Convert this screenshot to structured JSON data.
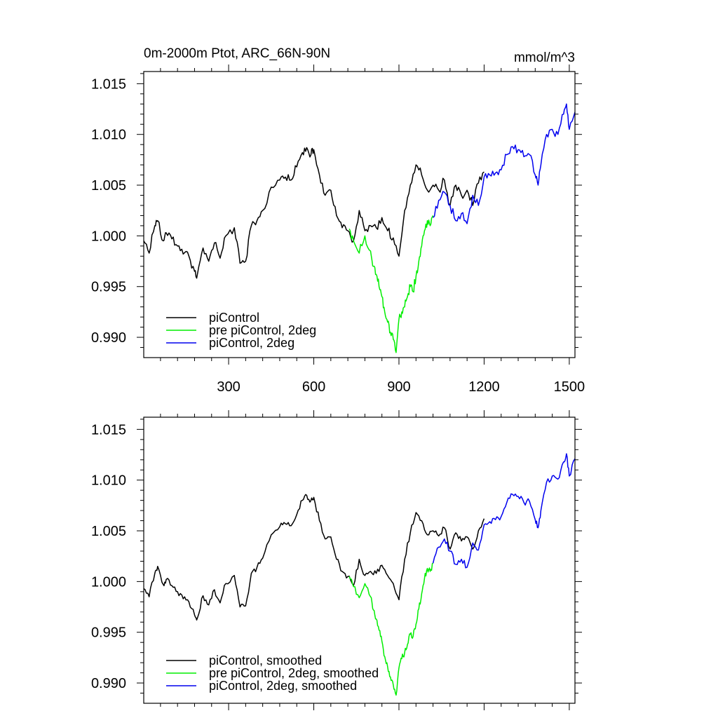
{
  "chart_data": [
    {
      "type": "line",
      "title": "0m-2000m Ptot, ARC_66N-90N",
      "units": "mmol/m^3",
      "xlim": [
        1,
        1520
      ],
      "ylim": [
        0.988,
        1.0162
      ],
      "x_ticks": [
        300,
        600,
        900,
        1200,
        1500
      ],
      "y_ticks": [
        1.015,
        1.01,
        1.005,
        1.0,
        0.995,
        0.99
      ],
      "y_tick_labels": [
        "1.015",
        "1.010",
        "1.005",
        "1.000",
        "0.995",
        "0.990"
      ],
      "legend_position": "bottom-left",
      "series": [
        {
          "name": "piControl",
          "color": "#000000",
          "x": [
            1,
            20,
            40,
            50,
            70,
            80,
            100,
            120,
            140,
            160,
            180,
            190,
            210,
            230,
            250,
            270,
            290,
            320,
            340,
            360,
            380,
            400,
            420,
            450,
            480,
            500,
            520,
            540,
            560,
            575,
            590,
            600,
            620,
            640,
            660,
            680,
            700,
            720,
            740,
            760,
            780,
            800,
            820,
            840,
            860,
            880,
            900,
            920,
            940,
            960,
            980,
            1000,
            1020,
            1040,
            1060,
            1080,
            1100,
            1120,
            1140,
            1160,
            1180,
            1200
          ],
          "y": [
            0.9995,
            0.9983,
            1.001,
            1.0015,
            0.9995,
            1.0003,
            0.9997,
            0.999,
            0.9982,
            0.998,
            0.9965,
            0.9962,
            0.9988,
            0.9975,
            0.9993,
            0.9978,
            1.0,
            1.0008,
            0.9973,
            0.9975,
            1.001,
            1.0015,
            1.0025,
            1.0048,
            1.0055,
            1.0058,
            1.0055,
            1.0068,
            1.0082,
            1.0087,
            1.008,
            1.0085,
            1.006,
            1.004,
            1.0045,
            1.002,
            1.0008,
            1.0005,
            0.9995,
            1.0025,
            1.0005,
            1.001,
            1.0008,
            1.0018,
            1.0005,
            0.9998,
            0.998,
            1.0025,
            1.005,
            1.007,
            1.006,
            1.0045,
            1.005,
            1.0045,
            1.0055,
            1.003,
            1.005,
            1.004,
            1.0045,
            1.003,
            1.0052,
            1.0063
          ]
        },
        {
          "name": "pre piControl, 2deg",
          "color": "#00ee00",
          "x": [
            725,
            740,
            760,
            780,
            800,
            810,
            820,
            830,
            840,
            850,
            860,
            870,
            880,
            890,
            900,
            910,
            920,
            930,
            940,
            950,
            960,
            970,
            980,
            990,
            1000,
            1010,
            1020
          ],
          "y": [
            1.0007,
            0.9995,
            0.9983,
            1.0,
            0.9985,
            0.997,
            0.9962,
            0.995,
            0.994,
            0.9925,
            0.9915,
            0.9905,
            0.9898,
            0.9885,
            0.9918,
            0.9925,
            0.993,
            0.994,
            0.995,
            0.9945,
            0.996,
            0.9975,
            0.999,
            1.0005,
            1.0015,
            1.001,
            1.002
          ]
        },
        {
          "name": "piControl, 2deg",
          "color": "#0000ee",
          "x": [
            1020,
            1040,
            1060,
            1080,
            1100,
            1120,
            1140,
            1160,
            1180,
            1200,
            1220,
            1240,
            1260,
            1280,
            1300,
            1320,
            1340,
            1360,
            1380,
            1390,
            1400,
            1420,
            1440,
            1460,
            1480,
            1490,
            1500,
            1520
          ],
          "y": [
            1.0018,
            1.0035,
            1.0043,
            1.003,
            1.0015,
            1.0022,
            1.0012,
            1.004,
            1.003,
            1.0058,
            1.006,
            1.0062,
            1.0065,
            1.008,
            1.0088,
            1.0085,
            1.0078,
            1.008,
            1.006,
            1.005,
            1.007,
            1.01,
            1.0105,
            1.01,
            1.012,
            1.013,
            1.0105,
            1.0122
          ]
        }
      ]
    },
    {
      "type": "line",
      "xlim": [
        1,
        1520
      ],
      "ylim": [
        0.988,
        1.0162
      ],
      "x_ticks": [
        300,
        600,
        900,
        1200,
        1500
      ],
      "y_ticks": [
        1.015,
        1.01,
        1.005,
        1.0,
        0.995,
        0.99
      ],
      "y_tick_labels": [
        "1.015",
        "1.010",
        "1.005",
        "1.000",
        "0.995",
        "0.990"
      ],
      "legend_position": "bottom-left",
      "series": [
        {
          "name": "piControl, smoothed",
          "color": "#000000",
          "x": [
            1,
            20,
            40,
            50,
            70,
            80,
            100,
            120,
            140,
            160,
            180,
            190,
            210,
            230,
            250,
            270,
            290,
            320,
            340,
            360,
            380,
            400,
            420,
            450,
            480,
            500,
            520,
            540,
            560,
            575,
            590,
            600,
            620,
            640,
            660,
            680,
            700,
            720,
            740,
            760,
            780,
            800,
            820,
            840,
            860,
            880,
            900,
            920,
            940,
            960,
            980,
            1000,
            1020,
            1040,
            1060,
            1080,
            1100,
            1120,
            1140,
            1160,
            1180,
            1200
          ],
          "y": [
            0.9993,
            0.9985,
            1.0008,
            1.0015,
            0.9997,
            1.0002,
            0.9996,
            0.999,
            0.9983,
            0.998,
            0.9967,
            0.9964,
            0.9986,
            0.9977,
            0.9992,
            0.9979,
            0.9998,
            1.0006,
            0.9975,
            0.9976,
            1.0008,
            1.0014,
            1.0023,
            1.0046,
            1.0054,
            1.0057,
            1.0055,
            1.0066,
            1.008,
            1.0085,
            1.008,
            1.0083,
            1.006,
            1.0042,
            1.0044,
            1.0022,
            1.001,
            1.0005,
            0.9996,
            1.0022,
            1.0006,
            1.001,
            1.0008,
            1.0016,
            1.0006,
            0.9998,
            0.9982,
            1.0022,
            1.0048,
            1.0068,
            1.006,
            1.0046,
            1.005,
            1.0045,
            1.0053,
            1.0032,
            1.0048,
            1.004,
            1.0044,
            1.0032,
            1.005,
            1.0062
          ]
        },
        {
          "name": "pre piControl, 2deg, smoothed",
          "color": "#00ee00",
          "x": [
            725,
            740,
            760,
            780,
            800,
            810,
            820,
            830,
            840,
            850,
            860,
            870,
            880,
            890,
            900,
            910,
            920,
            930,
            940,
            950,
            960,
            970,
            980,
            990,
            1000,
            1010,
            1020
          ],
          "y": [
            1.0005,
            0.9995,
            0.9984,
            0.9998,
            0.9985,
            0.9972,
            0.9963,
            0.9952,
            0.9941,
            0.9926,
            0.9916,
            0.9906,
            0.9898,
            0.9888,
            0.9915,
            0.9924,
            0.993,
            0.9938,
            0.9948,
            0.9946,
            0.9958,
            0.9973,
            0.9988,
            1.0003,
            1.0013,
            1.001,
            1.0018
          ]
        },
        {
          "name": "piControl, 2deg, smoothed",
          "color": "#0000ee",
          "x": [
            1020,
            1040,
            1060,
            1080,
            1100,
            1120,
            1140,
            1160,
            1180,
            1200,
            1220,
            1240,
            1260,
            1280,
            1300,
            1320,
            1340,
            1360,
            1380,
            1390,
            1400,
            1420,
            1440,
            1460,
            1480,
            1490,
            1500,
            1520
          ],
          "y": [
            1.0018,
            1.0034,
            1.0042,
            1.003,
            1.0017,
            1.0022,
            1.0014,
            1.0038,
            1.0031,
            1.0056,
            1.0059,
            1.0061,
            1.0064,
            1.0078,
            1.0086,
            1.0084,
            1.0078,
            1.0079,
            1.0061,
            1.0053,
            1.007,
            1.0098,
            1.0104,
            1.0101,
            1.0118,
            1.0126,
            1.0104,
            1.0121
          ]
        }
      ]
    }
  ]
}
